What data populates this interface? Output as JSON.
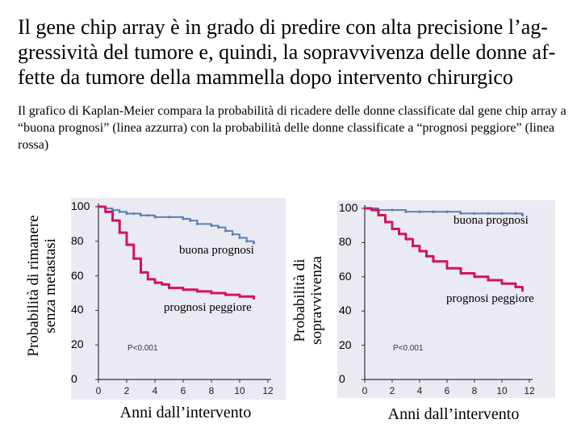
{
  "slide": {
    "title": "Il gene chip array è in grado di predire con alta precisione l’ag-gressività del tumore e, quindi, la sopravvivenza delle donne af-fette da tumore della mammella dopo intervento chirurgico",
    "description": "Il grafico di Kaplan-Meier compara la probabilità di ricadere delle donne classificate dal gene chip array a “buona prognosi” (linea azzurra) con la probabilità delle donne classificate a “prognosi peggiore” (linea rossa)"
  },
  "colors": {
    "good": "#5b7fb0",
    "poor": "#d4145a",
    "panel": "#eaeaf3"
  },
  "chart_data": [
    {
      "type": "line",
      "ylabel_line1": "Probabilità di rimanere",
      "ylabel_line2": "senza metastasi",
      "xlabel": "Anni dall’intervento",
      "yticks": [
        "100",
        "80",
        "60",
        "40",
        "20",
        "0"
      ],
      "xticks": [
        "0",
        "2",
        "4",
        "6",
        "8",
        "10",
        "12"
      ],
      "ylim": [
        0,
        100
      ],
      "xlim": [
        0,
        12
      ],
      "annotation": "P<0.001",
      "series": [
        {
          "name": "buona prognosi",
          "x": [
            0,
            0.5,
            1,
            1.5,
            2,
            2.5,
            3,
            3.5,
            4,
            5,
            6,
            6.5,
            7,
            8,
            8.5,
            9,
            9.5,
            10,
            10.5,
            11
          ],
          "y": [
            100,
            99,
            98,
            97,
            96,
            96,
            95,
            95,
            94,
            94,
            93,
            92,
            90,
            89,
            88,
            86,
            84,
            82,
            80,
            79
          ]
        },
        {
          "name": "prognosi peggiore",
          "x": [
            0,
            0.5,
            1,
            1.5,
            2,
            2.5,
            3,
            3.5,
            4,
            4.5,
            5,
            6,
            7,
            8,
            9,
            10,
            11
          ],
          "y": [
            100,
            97,
            92,
            85,
            78,
            70,
            62,
            58,
            56,
            55,
            53,
            52,
            51,
            50,
            49,
            48,
            47
          ]
        }
      ]
    },
    {
      "type": "line",
      "ylabel_line1": "Probabilità di",
      "ylabel_line2": "sopravvivenza",
      "xlabel": "Anni dall’intervento",
      "yticks": [
        "100",
        "80",
        "60",
        "40",
        "20",
        "0"
      ],
      "xticks": [
        "0",
        "2",
        "4",
        "6",
        "8",
        "10",
        "12"
      ],
      "ylim": [
        0,
        100
      ],
      "xlim": [
        0,
        12
      ],
      "annotation": "P<0.001",
      "series": [
        {
          "name": "buona prognosi",
          "x": [
            0,
            1,
            2,
            3,
            4,
            5,
            6,
            7,
            8,
            9,
            10,
            11,
            11.5
          ],
          "y": [
            100,
            99,
            99,
            98,
            98,
            98,
            98,
            97,
            97,
            97,
            97,
            97,
            96
          ]
        },
        {
          "name": "prognosi peggiore",
          "x": [
            0,
            0.5,
            1,
            1.5,
            2,
            2.5,
            3,
            3.5,
            4,
            4.5,
            5,
            6,
            7,
            8,
            9,
            10,
            11,
            11.5
          ],
          "y": [
            100,
            99,
            96,
            92,
            88,
            85,
            82,
            78,
            75,
            72,
            69,
            65,
            62,
            60,
            58,
            56,
            54,
            52
          ]
        }
      ]
    }
  ]
}
